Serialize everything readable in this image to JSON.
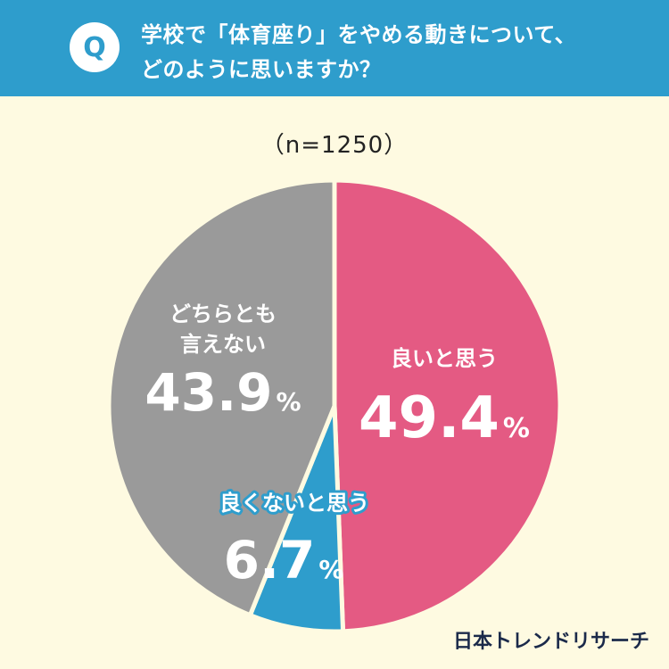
{
  "header": {
    "badge": "Q",
    "question_line1": "学校で「体育座り」をやめる動きについて、",
    "question_line2": "どのように思いますか？"
  },
  "sample_size": "（n=1250）",
  "brand": "日本トレンドリサーチ",
  "colors": {
    "header_bg": "#2E9DCC",
    "page_bg": "#FEFAE1",
    "good": "#E45A83",
    "not_good": "#2E9DCC",
    "neutral": "#9A9A9A"
  },
  "chart_data": {
    "type": "pie",
    "unit": "%",
    "slices": [
      {
        "label": "良いと思う",
        "value": 49.4,
        "color": "#E45A83"
      },
      {
        "label": "良くないと思う",
        "value": 6.7,
        "color": "#2E9DCC"
      },
      {
        "label": "どちらとも言えない",
        "value": 43.9,
        "color": "#9A9A9A",
        "label_lines": [
          "どちらとも",
          "言えない"
        ]
      }
    ]
  }
}
